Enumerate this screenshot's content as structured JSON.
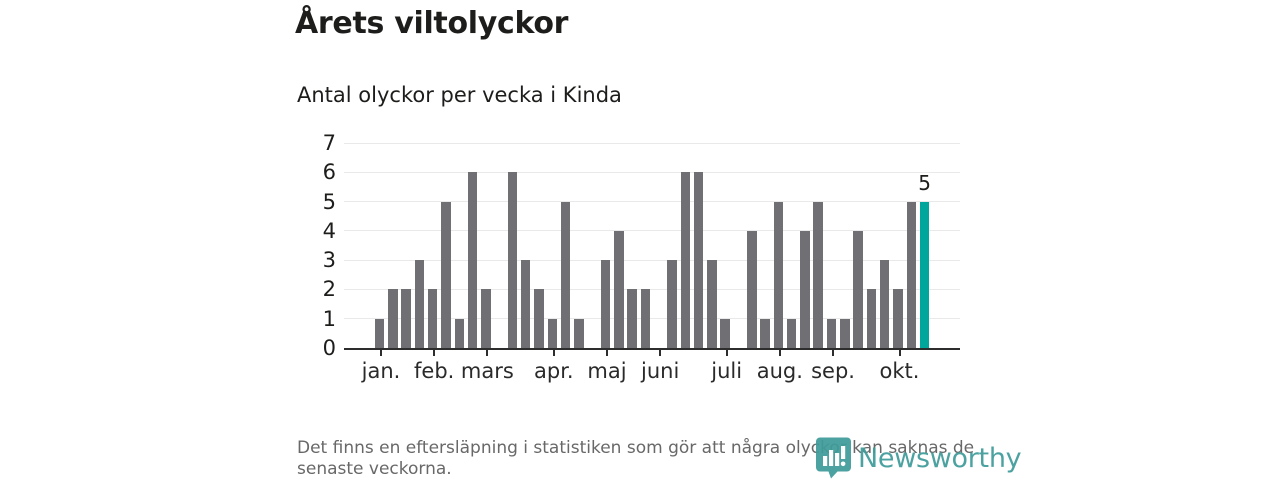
{
  "header": {
    "title": "Årets viltolyckor",
    "subtitle": "Antal olyckor per vecka i Kinda"
  },
  "chart_data": {
    "type": "bar",
    "title": "Årets viltolyckor",
    "subtitle": "Antal olyckor per vecka i Kinda",
    "x_unit": "vecka (week of year)",
    "weeks": [
      1,
      2,
      3,
      4,
      5,
      6,
      7,
      8,
      9,
      10,
      11,
      12,
      13,
      14,
      15,
      16,
      17,
      18,
      19,
      20,
      21,
      22,
      23,
      24,
      25,
      26,
      27,
      28,
      29,
      30,
      31,
      32,
      33,
      34,
      35,
      36,
      37,
      38,
      39,
      40,
      41,
      42
    ],
    "values": [
      1,
      2,
      2,
      3,
      2,
      5,
      1,
      6,
      2,
      0,
      6,
      3,
      2,
      1,
      5,
      1,
      0,
      3,
      4,
      2,
      2,
      0,
      3,
      6,
      6,
      3,
      1,
      0,
      4,
      1,
      5,
      1,
      4,
      5,
      1,
      1,
      4,
      2,
      3,
      2,
      5,
      5
    ],
    "ylim": [
      0,
      7
    ],
    "yticks": [
      0,
      1,
      2,
      3,
      4,
      5,
      6,
      7
    ],
    "grid": true,
    "legend": false,
    "month_ticks": [
      {
        "label": "jan.",
        "week": 1
      },
      {
        "label": "feb.",
        "week": 5
      },
      {
        "label": "mars",
        "week": 9
      },
      {
        "label": "apr.",
        "week": 14
      },
      {
        "label": "maj",
        "week": 18
      },
      {
        "label": "juni",
        "week": 22
      },
      {
        "label": "juli",
        "week": 27
      },
      {
        "label": "aug.",
        "week": 31
      },
      {
        "label": "sep.",
        "week": 35
      },
      {
        "label": "okt.",
        "week": 40
      }
    ],
    "highlight": {
      "week": 42,
      "value": 5,
      "label": "5",
      "color": "#00a69c"
    },
    "bar_color": "#707074",
    "gridline_color": "#e9e9e9",
    "axis_color": "#2d2d2d"
  },
  "footer": {
    "note": "Det finns en eftersläpning i statistiken som gör att några olyckor kan saknas de senaste veckorna."
  },
  "logo": {
    "wordmark": "Newsworthy",
    "color": "#3f9c99",
    "icon": "newsworthy-pin-barchart-icon"
  }
}
